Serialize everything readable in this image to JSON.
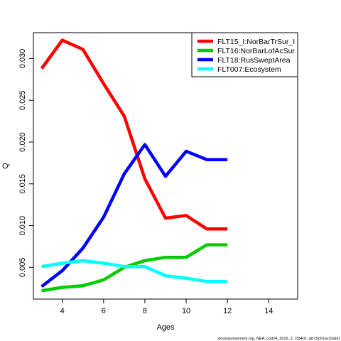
{
  "chart_data": {
    "type": "line",
    "title": "",
    "xlabel": "Ages",
    "ylabel": "Q",
    "xlim": [
      2.6,
      15.4
    ],
    "ylim": [
      0.0012,
      0.0331
    ],
    "x_ticks": [
      4,
      6,
      8,
      10,
      12,
      14
    ],
    "y_ticks": [
      0.005,
      0.01,
      0.015,
      0.02,
      0.025,
      0.03
    ],
    "y_tick_labels": [
      "0.005",
      "0.010",
      "0.015",
      "0.020",
      "0.025",
      "0.030"
    ],
    "grid": false,
    "legend_position": "top-right",
    "x": [
      3,
      4,
      5,
      6,
      7,
      8,
      9,
      10,
      11,
      12
    ],
    "series": [
      {
        "name": "FLT15_I:NorBarTrSur_I",
        "color": "#ff0000",
        "values": [
          0.0288,
          0.0322,
          0.0311,
          0.027,
          0.0231,
          0.0156,
          0.0109,
          0.0112,
          0.0096,
          0.0096
        ]
      },
      {
        "name": "FLT16:NorBarLofAcSur",
        "color": "#00cd00",
        "values": [
          0.0022,
          0.0026,
          0.0028,
          0.0035,
          0.005,
          0.0058,
          0.0062,
          0.0062,
          0.0077,
          0.0077
        ]
      },
      {
        "name": "FLT18:RusSweptArea",
        "color": "#0000ff",
        "values": [
          0.0027,
          0.0046,
          0.0073,
          0.011,
          0.0162,
          0.0197,
          0.0159,
          0.0189,
          0.0179,
          0.0179
        ]
      },
      {
        "name": "FLT007:Ecosystem",
        "color": "#00ffff",
        "values": [
          0.0051,
          0.0055,
          0.0058,
          0.0055,
          0.0051,
          0.0051,
          0.004,
          0.0037,
          0.0033,
          0.0033
        ]
      }
    ],
    "footnote": "stockassessment.org, NEA_cod24_2016_2, r18401, git:c9c61ac53a0d"
  }
}
